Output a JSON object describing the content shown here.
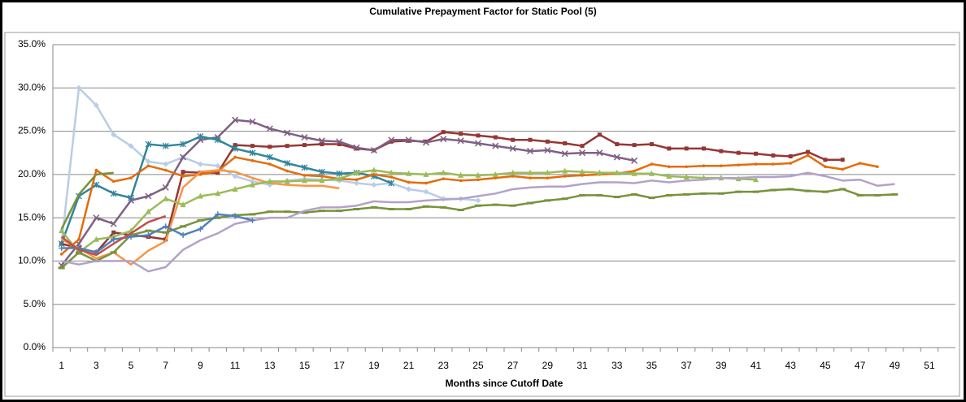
{
  "chart_data": {
    "type": "line",
    "title": "Cumulative Prepayment Factor for Static Pool (5)",
    "x_label": "Months since Cutoff Date",
    "categories": [
      "1",
      null,
      "3",
      null,
      "5",
      null,
      "7",
      null,
      "9",
      null,
      "11",
      null,
      "13",
      null,
      "15",
      null,
      "17",
      null,
      "19",
      null,
      "21",
      null,
      "23",
      null,
      "25",
      null,
      "27",
      null,
      "29",
      null,
      "31",
      null,
      "33",
      null,
      "35",
      null,
      "37",
      null,
      "39",
      null,
      "41",
      null,
      "43",
      null,
      "45",
      null,
      "47",
      null,
      "49",
      null,
      "51",
      null
    ],
    "ylim": [
      0,
      35
    ],
    "yticks": [
      {
        "value": 0,
        "label": "0.0%"
      },
      {
        "value": 5,
        "label": "5.0%"
      },
      {
        "value": 10,
        "label": "10.0%"
      },
      {
        "value": 15,
        "label": "15.0%"
      },
      {
        "value": 20,
        "label": "20.0%"
      },
      {
        "value": 25,
        "label": "25.0%"
      },
      {
        "value": 30,
        "label": "30.0%"
      },
      {
        "value": 35,
        "label": "35.0%"
      }
    ],
    "grid": true,
    "series": [
      {
        "color": "#b9cde5",
        "marker": "diamond",
        "values": [
          12,
          30,
          28,
          24.6,
          23.3,
          21.5,
          21.2,
          22,
          21.2,
          21,
          19.8,
          19.2,
          18.8,
          19.3,
          19.5,
          19.4,
          19.3,
          19,
          18.8,
          19,
          18.3,
          18,
          17.2,
          17.2,
          17,
          null,
          null,
          null,
          null,
          null,
          null,
          null,
          null,
          null,
          null,
          null,
          null,
          null,
          null,
          null,
          null,
          null,
          null,
          null,
          null,
          null,
          null,
          null,
          null,
          null,
          null,
          null
        ]
      },
      {
        "color": "#953735",
        "marker": "square",
        "values": [
          12,
          11.5,
          11,
          13.3,
          13,
          12.8,
          12.5,
          20.3,
          20.2,
          20.2,
          23.4,
          23.3,
          23.2,
          23.3,
          23.4,
          23.5,
          23.5,
          23,
          22.8,
          23.8,
          23.9,
          23.8,
          24.9,
          24.7,
          24.5,
          24.3,
          24,
          24,
          23.8,
          23.6,
          23.3,
          24.6,
          23.5,
          23.4,
          23.5,
          23,
          23,
          23,
          22.7,
          22.5,
          22.4,
          22.2,
          22.1,
          22.6,
          21.7,
          21.7,
          null,
          null,
          null,
          null,
          null,
          null
        ]
      },
      {
        "color": "#7f6084",
        "marker": "x",
        "values": [
          9.5,
          12,
          15,
          14.3,
          17,
          17.5,
          18.5,
          22,
          24,
          24.3,
          26.3,
          26.1,
          25.3,
          24.8,
          24.3,
          23.9,
          23.8,
          23.1,
          22.8,
          24,
          24,
          23.7,
          24.1,
          23.9,
          23.6,
          23.3,
          23,
          22.7,
          22.8,
          22.4,
          22.5,
          22.5,
          22,
          21.6,
          null,
          null,
          null,
          null,
          null,
          null,
          null,
          null,
          null,
          null,
          null,
          null,
          null,
          null,
          null,
          null,
          null,
          null
        ]
      },
      {
        "color": "#31859c",
        "marker": "asterisk",
        "values": [
          12,
          17.5,
          18.8,
          17.8,
          17.3,
          23.5,
          23.3,
          23.5,
          24.4,
          24,
          23,
          22.5,
          22,
          21.3,
          20.8,
          20.3,
          20.1,
          20.2,
          19.8,
          19,
          null,
          null,
          null,
          null,
          null,
          null,
          null,
          null,
          null,
          null,
          null,
          null,
          null,
          null,
          null,
          null,
          null,
          null,
          null,
          null,
          null,
          null,
          null,
          null,
          null,
          null,
          null,
          null,
          null,
          null,
          null,
          null
        ]
      },
      {
        "color": "#e46c0a",
        "marker": "dot",
        "values": [
          10.8,
          12.5,
          20.5,
          19.2,
          19.6,
          21,
          20.5,
          19.8,
          20,
          20.4,
          22,
          21.6,
          21.2,
          20.4,
          19.9,
          19.8,
          19.5,
          19.4,
          20,
          19.7,
          19.1,
          19,
          19.5,
          19.3,
          19.4,
          19.6,
          19.8,
          19.6,
          19.6,
          19.8,
          19.9,
          20,
          20.1,
          20.4,
          21.2,
          20.9,
          20.9,
          21,
          21,
          21.1,
          21.2,
          21.2,
          21.3,
          22.2,
          20.9,
          20.6,
          21.3,
          20.9,
          null,
          null,
          null,
          null
        ]
      },
      {
        "color": "#f79646",
        "marker": "none",
        "values": [
          12.5,
          11.5,
          10.3,
          11,
          9.6,
          11.2,
          12.3,
          18.5,
          20.3,
          20.5,
          20.3,
          19.6,
          19,
          18.8,
          18.7,
          18.7,
          18.4,
          null,
          null,
          null,
          null,
          null,
          null,
          null,
          null,
          null,
          null,
          null,
          null,
          null,
          null,
          null,
          null,
          null,
          null,
          null,
          null,
          null,
          null,
          null,
          null,
          null,
          null,
          null,
          null,
          null,
          null,
          null,
          null,
          null,
          null,
          null
        ]
      },
      {
        "color": "#9bbb59",
        "marker": "triangle",
        "values": [
          13.5,
          11,
          12.5,
          12.8,
          13.5,
          15.7,
          17.2,
          16.5,
          17.5,
          17.8,
          18.3,
          18.8,
          19.2,
          19.2,
          19.3,
          19.3,
          19.5,
          20.2,
          20.5,
          20.2,
          20.1,
          20,
          20.2,
          19.9,
          19.9,
          20,
          20.2,
          20.2,
          20.2,
          20.4,
          20.3,
          20.2,
          20.2,
          20.1,
          20.1,
          19.8,
          19.7,
          19.6,
          19.6,
          19.5,
          19.4,
          null,
          null,
          null,
          null,
          null,
          null,
          null,
          null,
          null,
          null,
          null
        ]
      },
      {
        "color": "#77933c",
        "marker": "dash",
        "values": [
          9.2,
          11,
          10,
          11,
          13,
          13.5,
          13.3,
          14,
          14.7,
          15,
          15.3,
          15.4,
          15.7,
          15.7,
          15.6,
          15.8,
          15.8,
          16,
          16.2,
          16,
          16,
          16.3,
          16.2,
          15.9,
          16.4,
          16.5,
          16.4,
          16.7,
          17,
          17.2,
          17.6,
          17.6,
          17.4,
          17.7,
          17.3,
          17.6,
          17.7,
          17.8,
          17.8,
          18,
          18,
          18.2,
          18.3,
          18.1,
          18,
          18.3,
          17.6,
          17.6,
          17.7,
          null,
          null,
          null
        ]
      },
      {
        "color": "#b3a2c7",
        "marker": "none",
        "values": [
          10,
          9.6,
          10,
          10,
          10,
          8.8,
          9.3,
          11.3,
          12.4,
          13.2,
          14.3,
          14.7,
          15,
          15,
          15.8,
          16.2,
          16.2,
          16.4,
          16.9,
          16.8,
          16.8,
          17,
          17.1,
          17.2,
          17.5,
          17.8,
          18.3,
          18.5,
          18.6,
          18.6,
          18.9,
          19.1,
          19.1,
          19,
          19.3,
          19.1,
          19.3,
          19.4,
          19.6,
          19.6,
          19.7,
          19.7,
          19.8,
          20.2,
          19.8,
          19.3,
          19.4,
          18.7,
          18.9,
          null,
          null,
          null
        ]
      },
      {
        "color": "#4f81bd",
        "marker": "plus",
        "values": [
          11.5,
          11.5,
          11,
          12.5,
          12.8,
          13,
          14,
          13,
          13.7,
          15.4,
          15.2,
          14.7,
          null,
          null,
          null,
          null,
          null,
          null,
          null,
          null,
          null,
          null,
          null,
          null,
          null,
          null,
          null,
          null,
          null,
          null,
          null,
          null,
          null,
          null,
          null,
          null,
          null,
          null,
          null,
          null,
          null,
          null,
          null,
          null,
          null,
          null,
          null,
          null,
          null,
          null,
          null,
          null
        ]
      },
      {
        "color": "#c0504d",
        "marker": "none",
        "values": [
          12.8,
          11.3,
          10.7,
          12,
          13.2,
          14.5,
          15.2,
          null,
          null,
          null,
          null,
          null,
          null,
          null,
          null,
          null,
          null,
          null,
          null,
          null,
          null,
          null,
          null,
          null,
          null,
          null,
          null,
          null,
          null,
          null,
          null,
          null,
          null,
          null,
          null,
          null,
          null,
          null,
          null,
          null,
          null,
          null,
          null,
          null,
          null,
          null,
          null,
          null,
          null,
          null,
          null,
          null
        ]
      },
      {
        "color": "#76923c",
        "marker": "none",
        "values": [
          13.7,
          17.7,
          20,
          20.2,
          null,
          null,
          null,
          null,
          null,
          null,
          null,
          null,
          null,
          null,
          null,
          null,
          null,
          null,
          null,
          null,
          null,
          null,
          null,
          null,
          null,
          null,
          null,
          null,
          null,
          null,
          null,
          null,
          null,
          null,
          null,
          null,
          null,
          null,
          null,
          null,
          null,
          null,
          null,
          null,
          null,
          null,
          null,
          null,
          null,
          null,
          null,
          null
        ]
      }
    ]
  }
}
